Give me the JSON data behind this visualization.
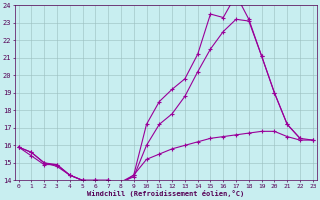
{
  "xlabel": "Windchill (Refroidissement éolien,°C)",
  "background_color": "#c8eef0",
  "line_color": "#990099",
  "x_min": 0,
  "x_max": 23,
  "y_min": 14,
  "y_max": 24,
  "curve1_x": [
    0,
    1,
    2,
    3,
    4,
    5,
    6,
    7,
    8,
    9,
    10,
    11,
    12,
    13,
    14,
    15,
    16,
    17,
    18,
    19,
    20,
    21,
    22
  ],
  "curve1_y": [
    15.9,
    15.6,
    15.0,
    14.8,
    14.3,
    14.0,
    14.0,
    14.0,
    13.8,
    14.3,
    17.2,
    18.5,
    19.2,
    19.8,
    21.2,
    23.5,
    23.3,
    24.6,
    23.2,
    21.1,
    19.0,
    17.2,
    16.4
  ],
  "curve2_x": [
    0,
    1,
    2,
    3,
    4,
    5,
    6,
    7,
    8,
    9,
    10,
    11,
    12,
    13,
    14,
    15,
    16,
    17,
    18,
    19,
    20,
    21,
    22,
    23
  ],
  "curve2_y": [
    15.9,
    15.6,
    15.0,
    14.9,
    14.3,
    14.0,
    14.0,
    14.0,
    13.9,
    14.2,
    16.0,
    17.2,
    17.8,
    18.8,
    20.2,
    21.5,
    22.5,
    23.2,
    23.1,
    21.1,
    19.0,
    17.2,
    16.4,
    16.3
  ],
  "curve3_x": [
    0,
    1,
    2,
    3,
    4,
    5,
    6,
    7,
    8,
    9,
    10,
    11,
    12,
    13,
    14,
    15,
    16,
    17,
    18,
    19,
    20,
    21,
    22,
    23
  ],
  "curve3_y": [
    15.9,
    15.4,
    14.9,
    14.9,
    14.3,
    14.0,
    14.0,
    14.0,
    13.9,
    14.3,
    15.2,
    15.5,
    15.8,
    16.0,
    16.2,
    16.4,
    16.5,
    16.6,
    16.7,
    16.8,
    16.8,
    16.5,
    16.3,
    16.3
  ]
}
